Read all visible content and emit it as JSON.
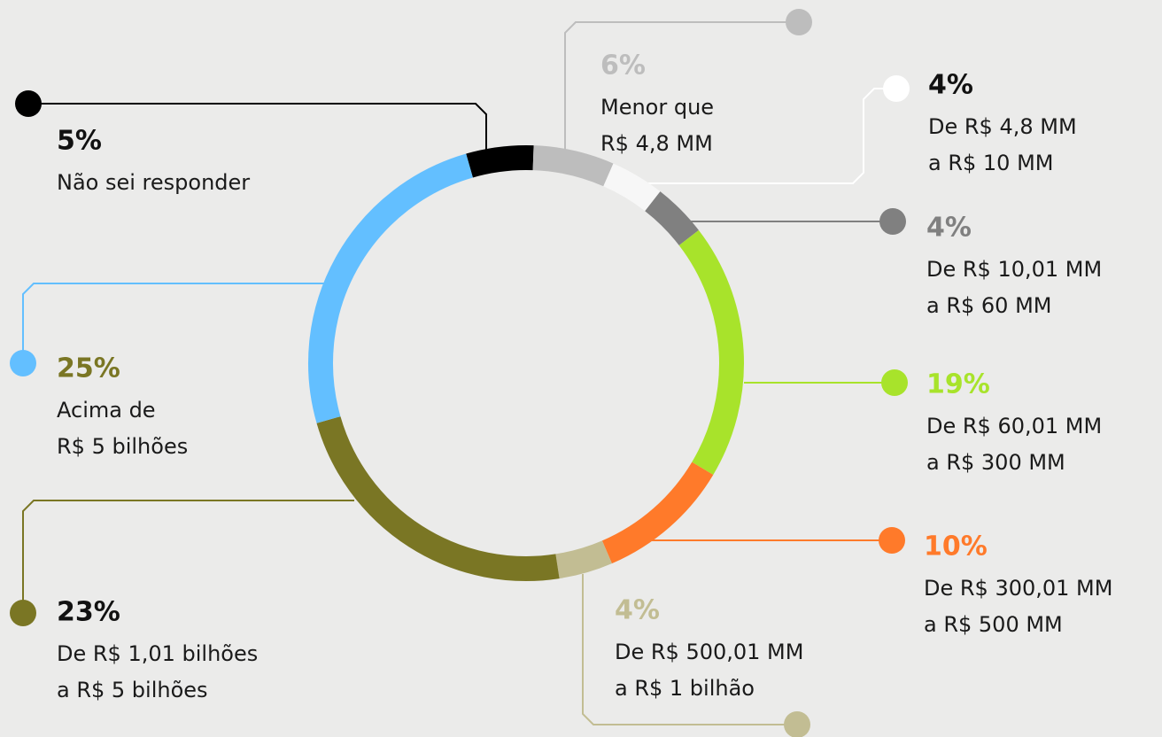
{
  "chart_data": {
    "type": "donut",
    "categories": [
      [
        "Não sei responder"
      ],
      [
        "Menor que",
        "R$ 4,8 MM"
      ],
      [
        "De R$ 4,8 MM",
        "a R$ 10 MM"
      ],
      [
        "De R$ 10,01 MM",
        "a R$ 60 MM"
      ],
      [
        "De R$ 60,01 MM",
        "a R$ 300 MM"
      ],
      [
        "De R$ 300,01 MM",
        "a R$ 500 MM"
      ],
      [
        "De R$ 500,01 MM",
        "a R$ 1 bilhão"
      ],
      [
        "De R$ 1,01 bilhões",
        "a R$ 5 bilhões"
      ],
      [
        "Acima de",
        "R$ 5 bilhões"
      ]
    ],
    "values": [
      5,
      6,
      4,
      4,
      19,
      10,
      4,
      23,
      25
    ],
    "value_labels": [
      "5%",
      "6%",
      "4%",
      "4%",
      "19%",
      "10%",
      "4%",
      "23%",
      "25%"
    ],
    "colors": [
      "#000000",
      "#bdbdbd",
      "#f7f7f7",
      "#808080",
      "#a8e32b",
      "#ff7a2a",
      "#c2bd93",
      "#7a7624",
      "#63bfff"
    ],
    "label_colors": [
      "#111111",
      "#bdbdbd",
      "#111111",
      "#808080",
      "#a8e32b",
      "#ff7a2a",
      "#c2bd93",
      "#111111",
      "#7a7624"
    ]
  }
}
